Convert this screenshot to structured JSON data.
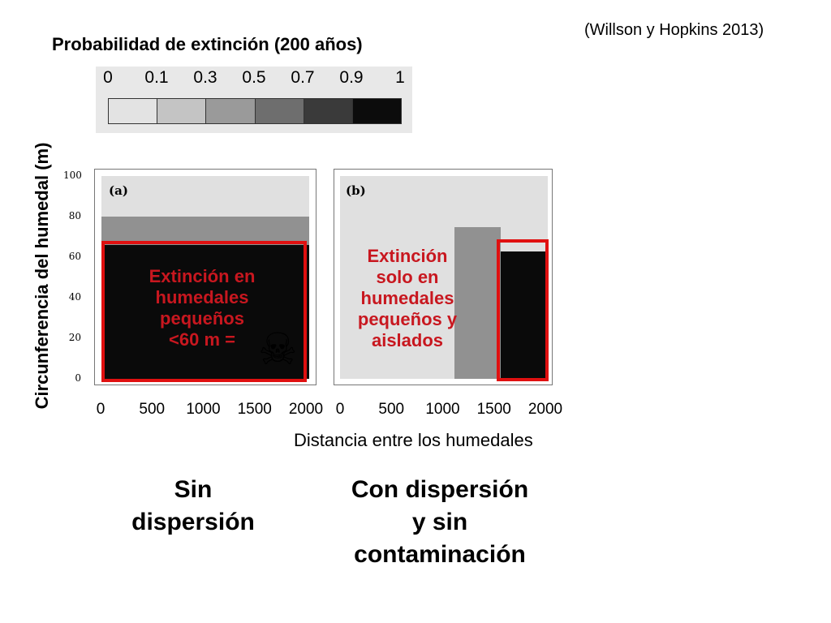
{
  "citation": "(Willson y Hopkins 2013)",
  "legend": {
    "title": "Probabilidad de extinción (200 años)",
    "ticks": [
      "0",
      "0.1",
      "0.3",
      "0.5",
      "0.7",
      "0.9",
      "1"
    ],
    "colors": [
      "#e3e3e3",
      "#c4c4c4",
      "#9a9a9a",
      "#6e6e6e",
      "#3a3a3a",
      "#0c0c0c"
    ]
  },
  "axes": {
    "ylabel": "Circunferencia del humedal (m)",
    "xlabel": "Distancia entre los humedales"
  },
  "panel_a": {
    "letter": "(a)",
    "annotation": [
      "Extinción en",
      "humedales",
      "pequeños",
      "<60 m ="
    ],
    "skull_icon": "☠"
  },
  "panel_b": {
    "letter": "(b)",
    "annotation": [
      "Extinción",
      "solo en",
      "humedales",
      "pequeños y",
      "aislados"
    ]
  },
  "captions": {
    "left": [
      "Sin",
      "dispersión"
    ],
    "right": [
      "Con dispersión",
      "y sin",
      "contaminación"
    ]
  },
  "chart_data": [
    {
      "type": "heatmap",
      "title": "(a)",
      "xlabel": "Distancia entre los humedales",
      "ylabel": "Circunferencia del humedal (m)",
      "xlim": [
        0,
        2000
      ],
      "ylim": [
        0,
        100
      ],
      "x_ticks": [
        "0",
        "500",
        "1000",
        "1500",
        "2000"
      ],
      "y_ticks": [
        "0",
        "20",
        "40",
        "60",
        "80",
        "100"
      ],
      "regions": [
        {
          "y_range": [
            0,
            66
          ],
          "x_range": [
            0,
            2000
          ],
          "extinction_probability": 1.0
        },
        {
          "y_range": [
            66,
            80
          ],
          "x_range": [
            0,
            2000
          ],
          "extinction_probability": 0.4
        },
        {
          "y_range": [
            80,
            100
          ],
          "x_range": [
            0,
            2000
          ],
          "extinction_probability": 0.05
        }
      ]
    },
    {
      "type": "heatmap",
      "title": "(b)",
      "xlabel": "Distancia entre los humedales",
      "ylabel": "Circunferencia del humedal (m)",
      "xlim": [
        0,
        2000
      ],
      "ylim": [
        0,
        100
      ],
      "x_ticks": [
        "0",
        "500",
        "1000",
        "1500",
        "2000"
      ],
      "y_ticks": [
        "0",
        "20",
        "40",
        "60",
        "80",
        "100"
      ],
      "regions": [
        {
          "y_range": [
            0,
            100
          ],
          "x_range": [
            0,
            1100
          ],
          "extinction_probability": 0.05
        },
        {
          "y_range": [
            0,
            75
          ],
          "x_range": [
            1100,
            1550
          ],
          "extinction_probability": 0.4
        },
        {
          "y_range": [
            0,
            63
          ],
          "x_range": [
            1550,
            2000
          ],
          "extinction_probability": 1.0
        }
      ]
    }
  ]
}
